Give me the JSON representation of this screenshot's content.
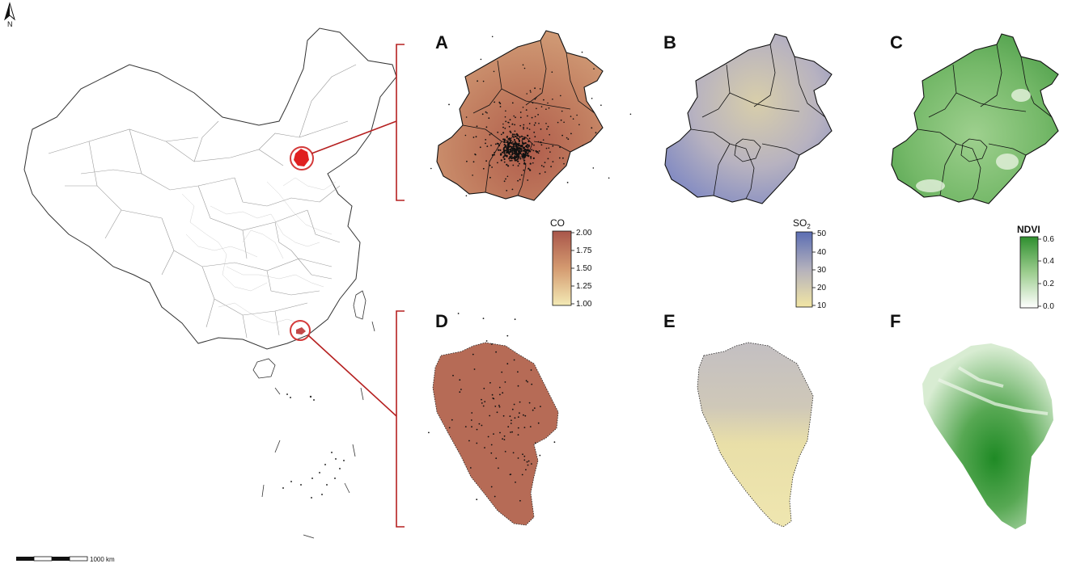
{
  "north_arrow": {
    "label": "N",
    "icon": "north-arrow-icon"
  },
  "scale_bar": {
    "label": "1000 km"
  },
  "highlight_color": "#d43a3a",
  "connector_color": "#b52020",
  "panels": {
    "A": {
      "letter": "A",
      "variable": "CO",
      "region": "beijing"
    },
    "B": {
      "letter": "B",
      "variable": "SO2",
      "region": "beijing"
    },
    "C": {
      "letter": "C",
      "variable": "NDVI",
      "region": "beijing"
    },
    "D": {
      "letter": "D",
      "variable": "CO",
      "region": "shenzhen"
    },
    "E": {
      "letter": "E",
      "variable": "SO2",
      "region": "shenzhen"
    },
    "F": {
      "letter": "F",
      "variable": "NDVI",
      "region": "shenzhen"
    }
  },
  "legends": {
    "co": {
      "title": "CO",
      "ticks": [
        "2.00",
        "1.75",
        "1.50",
        "1.25",
        "1.00"
      ],
      "colors": {
        "high": "#a9564a",
        "mid": "#d49a70",
        "low": "#f3eab5"
      }
    },
    "so2": {
      "title": "SO",
      "title_sub": "2",
      "ticks": [
        "50",
        "40",
        "30",
        "20",
        "10"
      ],
      "colors": {
        "high": "#5b6db3",
        "mid": "#b4b1bc",
        "low": "#f2e6a4"
      }
    },
    "ndvi": {
      "title": "NDVI",
      "ticks": [
        "0.6",
        "0.4",
        "0.2",
        "0.0"
      ],
      "colors": {
        "high": "#2f8f2f",
        "mid": "#9ccd8e",
        "low": "#ffffff"
      }
    }
  }
}
